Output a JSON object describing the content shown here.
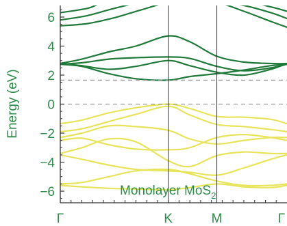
{
  "chart_data": {
    "type": "line",
    "title": "",
    "xlabel": "",
    "ylabel": "Energy (eV)",
    "ylim": [
      -6.8,
      6.8
    ],
    "yticks": [
      -6,
      -4,
      -2,
      0,
      2,
      4,
      6
    ],
    "ytick_labels": [
      "−6",
      "−4",
      "−2",
      "0",
      "2",
      "4",
      "6"
    ],
    "x_points": [
      "Γ",
      "K",
      "M",
      "Γ"
    ],
    "x_positions": [
      0,
      1,
      1.45,
      2.1
    ],
    "xlim": [
      0,
      2.1
    ],
    "grid": false,
    "reference_lines": [
      {
        "value": 1.65,
        "style": "dashed"
      },
      {
        "value": 0,
        "style": "dashed"
      }
    ],
    "annotation": {
      "text": "Monolayer MoS",
      "subscript": "2"
    },
    "colors": {
      "conduction": "#1f7a3a",
      "valence": "#e8e45a",
      "axis_label": "#2e8b4a",
      "axis": "#333333",
      "dash": "#999999"
    },
    "series": [
      {
        "band": "conduction",
        "x": [
          0,
          0.2,
          0.45,
          0.7,
          1.0,
          1.2,
          1.45,
          1.7,
          1.95,
          2.1
        ],
        "values": [
          2.75,
          2.6,
          2.1,
          1.75,
          1.65,
          1.9,
          2.1,
          2.35,
          2.65,
          2.75
        ]
      },
      {
        "band": "conduction",
        "x": [
          0,
          0.2,
          0.45,
          0.7,
          1.0,
          1.2,
          1.45,
          1.7,
          1.95,
          2.1
        ],
        "values": [
          2.8,
          2.65,
          2.4,
          2.6,
          3.0,
          2.65,
          2.2,
          2.0,
          2.4,
          2.8
        ]
      },
      {
        "band": "conduction",
        "x": [
          0,
          0.2,
          0.45,
          0.7,
          1.0,
          1.2,
          1.45,
          1.7,
          1.95,
          2.1
        ],
        "values": [
          2.75,
          2.85,
          3.1,
          3.2,
          3.25,
          3.15,
          2.6,
          2.3,
          2.5,
          2.75
        ]
      },
      {
        "band": "conduction",
        "x": [
          0,
          0.2,
          0.45,
          0.7,
          1.0,
          1.2,
          1.45,
          1.7,
          1.95,
          2.1
        ],
        "values": [
          2.8,
          3.1,
          3.6,
          4.0,
          4.7,
          4.3,
          3.3,
          2.9,
          2.8,
          2.8
        ]
      },
      {
        "band": "conduction",
        "x": [
          0,
          0.25,
          0.5,
          0.75,
          1.0,
          1.2,
          1.45,
          1.7,
          1.95,
          2.1
        ],
        "values": [
          5.4,
          5.55,
          5.95,
          6.5,
          7.0,
          7.0,
          7.0,
          6.4,
          5.7,
          5.3
        ]
      },
      {
        "band": "conduction",
        "x": [
          0,
          0.25,
          0.5,
          0.75,
          1.0,
          1.45,
          1.7,
          1.95,
          2.1
        ],
        "values": [
          5.8,
          6.1,
          6.6,
          7.0,
          7.0,
          7.0,
          6.8,
          6.3,
          5.9
        ]
      },
      {
        "band": "conduction",
        "x": [
          0,
          0.25,
          0.45,
          1.0,
          1.45,
          1.75,
          1.95,
          2.1
        ],
        "values": [
          6.3,
          6.6,
          7.0,
          7.0,
          7.0,
          7.0,
          6.7,
          6.4
        ]
      },
      {
        "band": "valence",
        "x": [
          0,
          0.2,
          0.45,
          0.7,
          1.0,
          1.2,
          1.45,
          1.7,
          1.95,
          2.1
        ],
        "values": [
          -1.35,
          -1.1,
          -0.6,
          -0.25,
          0.0,
          -0.3,
          -0.85,
          -0.9,
          -1.05,
          -1.35
        ]
      },
      {
        "band": "valence",
        "x": [
          0,
          0.2,
          0.45,
          0.7,
          1.0,
          1.2,
          1.45,
          1.7,
          1.95,
          2.1
        ],
        "values": [
          -1.9,
          -1.7,
          -1.2,
          -0.7,
          -0.15,
          -0.75,
          -1.4,
          -1.55,
          -1.75,
          -1.9
        ]
      },
      {
        "band": "valence",
        "x": [
          0,
          0.2,
          0.45,
          0.7,
          1.0,
          1.2,
          1.45,
          1.7,
          1.95,
          2.1
        ],
        "values": [
          -2.3,
          -2.0,
          -1.5,
          -1.55,
          -1.8,
          -2.4,
          -2.75,
          -2.5,
          -2.3,
          -2.3
        ]
      },
      {
        "band": "valence",
        "x": [
          0,
          0.2,
          0.45,
          0.7,
          1.0,
          1.2,
          1.45,
          1.7,
          1.95,
          2.1
        ],
        "values": [
          -2.5,
          -2.35,
          -2.8,
          -3.1,
          -3.15,
          -3.0,
          -2.3,
          -2.1,
          -2.3,
          -2.5
        ]
      },
      {
        "band": "valence",
        "x": [
          0,
          0.2,
          0.45,
          0.7,
          1.0,
          1.2,
          1.45,
          1.7,
          1.95,
          2.1
        ],
        "values": [
          -3.4,
          -3.0,
          -2.4,
          -2.6,
          -3.9,
          -4.3,
          -3.55,
          -3.3,
          -3.4,
          -3.4
        ]
      },
      {
        "band": "valence",
        "x": [
          0,
          0.2,
          0.45,
          0.7,
          1.0,
          1.2,
          1.45,
          1.7,
          1.95,
          2.1
        ],
        "values": [
          -3.5,
          -3.8,
          -4.2,
          -4.5,
          -4.6,
          -4.7,
          -4.9,
          -4.4,
          -3.8,
          -3.5
        ]
      },
      {
        "band": "valence",
        "x": [
          0,
          0.2,
          0.45,
          0.7,
          1.0,
          1.2,
          1.45,
          1.7,
          1.95,
          2.1
        ],
        "values": [
          -5.5,
          -5.4,
          -5.0,
          -4.6,
          -4.5,
          -4.8,
          -5.3,
          -5.6,
          -5.6,
          -5.5
        ]
      },
      {
        "band": "valence",
        "x": [
          0,
          0.2,
          0.45,
          0.7,
          1.0,
          1.2,
          1.45,
          1.7,
          1.95,
          2.1
        ],
        "values": [
          -5.6,
          -5.7,
          -5.8,
          -5.85,
          -5.9,
          -5.75,
          -5.5,
          -5.7,
          -5.75,
          -5.6
        ]
      }
    ]
  }
}
